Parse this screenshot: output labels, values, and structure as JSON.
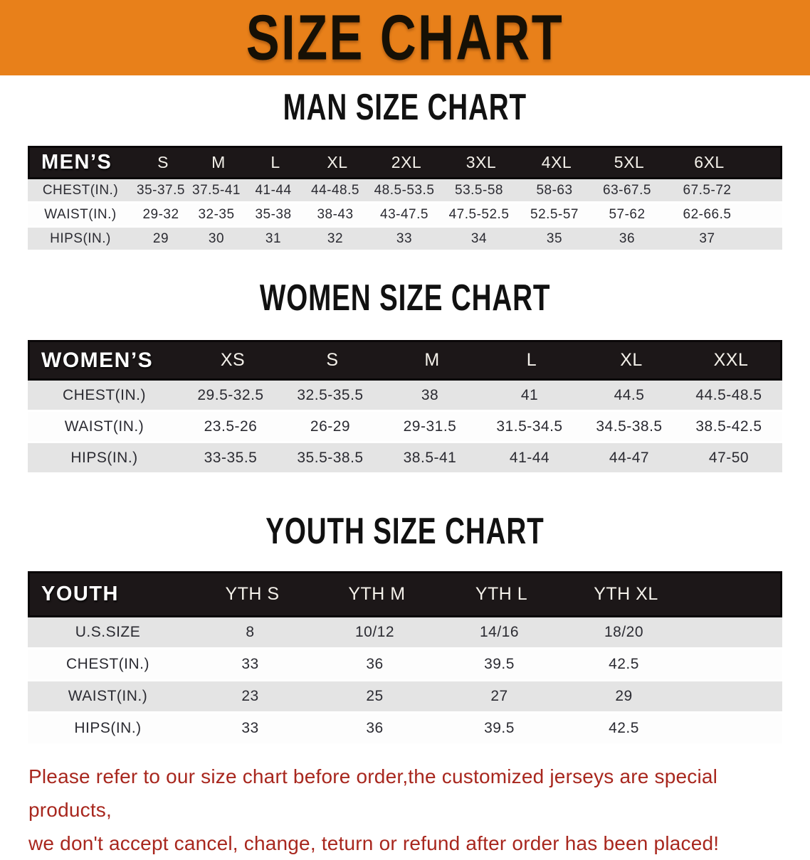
{
  "banner": {
    "title": "SIZE CHART"
  },
  "sections": [
    {
      "heading": "MAN SIZE CHART",
      "table": {
        "header_label": "MEN’S",
        "columns": [
          "S",
          "M",
          "L",
          "XL",
          "2XL",
          "3XL",
          "4XL",
          "5XL",
          "6XL"
        ],
        "rows": [
          {
            "label": "CHEST(IN.)",
            "values": [
              "35-37.5",
              "37.5-41",
              "41-44",
              "44-48.5",
              "48.5-53.5",
              "53.5-58",
              "58-63",
              "63-67.5",
              "67.5-72"
            ]
          },
          {
            "label": "WAIST(IN.)",
            "values": [
              "29-32",
              "32-35",
              "35-38",
              "38-43",
              "43-47.5",
              "47.5-52.5",
              "52.5-57",
              "57-62",
              "62-66.5"
            ]
          },
          {
            "label": "HIPS(IN.)",
            "values": [
              "29",
              "30",
              "31",
              "32",
              "33",
              "34",
              "35",
              "36",
              "37"
            ]
          }
        ]
      }
    },
    {
      "heading": "WOMEN SIZE CHART",
      "table": {
        "header_label": "WOMEN’S",
        "columns": [
          "XS",
          "S",
          "M",
          "L",
          "XL",
          "XXL"
        ],
        "rows": [
          {
            "label": "CHEST(IN.)",
            "values": [
              "29.5-32.5",
              "32.5-35.5",
              "38",
              "41",
              "44.5",
              "44.5-48.5"
            ]
          },
          {
            "label": "WAIST(IN.)",
            "values": [
              "23.5-26",
              "26-29",
              "29-31.5",
              "31.5-34.5",
              "34.5-38.5",
              "38.5-42.5"
            ]
          },
          {
            "label": "HIPS(IN.)",
            "values": [
              "33-35.5",
              "35.5-38.5",
              "38.5-41",
              "41-44",
              "44-47",
              "47-50"
            ]
          }
        ]
      }
    },
    {
      "heading": "YOUTH SIZE CHART",
      "table": {
        "header_label": "YOUTH",
        "columns": [
          "YTH S",
          "YTH M",
          "YTH L",
          "YTH XL"
        ],
        "rows": [
          {
            "label": "U.S.SIZE",
            "values": [
              "8",
              "10/12",
              "14/16",
              "18/20"
            ]
          },
          {
            "label": "CHEST(IN.)",
            "values": [
              "33",
              "36",
              "39.5",
              "42.5"
            ]
          },
          {
            "label": "WAIST(IN.)",
            "values": [
              "23",
              "25",
              "27",
              "29"
            ]
          },
          {
            "label": "HIPS(IN.)",
            "values": [
              "33",
              "36",
              "39.5",
              "42.5"
            ]
          }
        ]
      }
    }
  ],
  "disclaimer": {
    "line1": "Please refer to our size chart before order,the customized jerseys are special products,",
    "line2": "we don't accept cancel, change, teturn or refund after order has been placed!"
  },
  "colors": {
    "banner_bg": "#e8801a",
    "bar_bg": "#1c1718",
    "row_shade": "#e4e4e4",
    "text": "#2b2b32",
    "disclaimer": "#a8271e"
  }
}
